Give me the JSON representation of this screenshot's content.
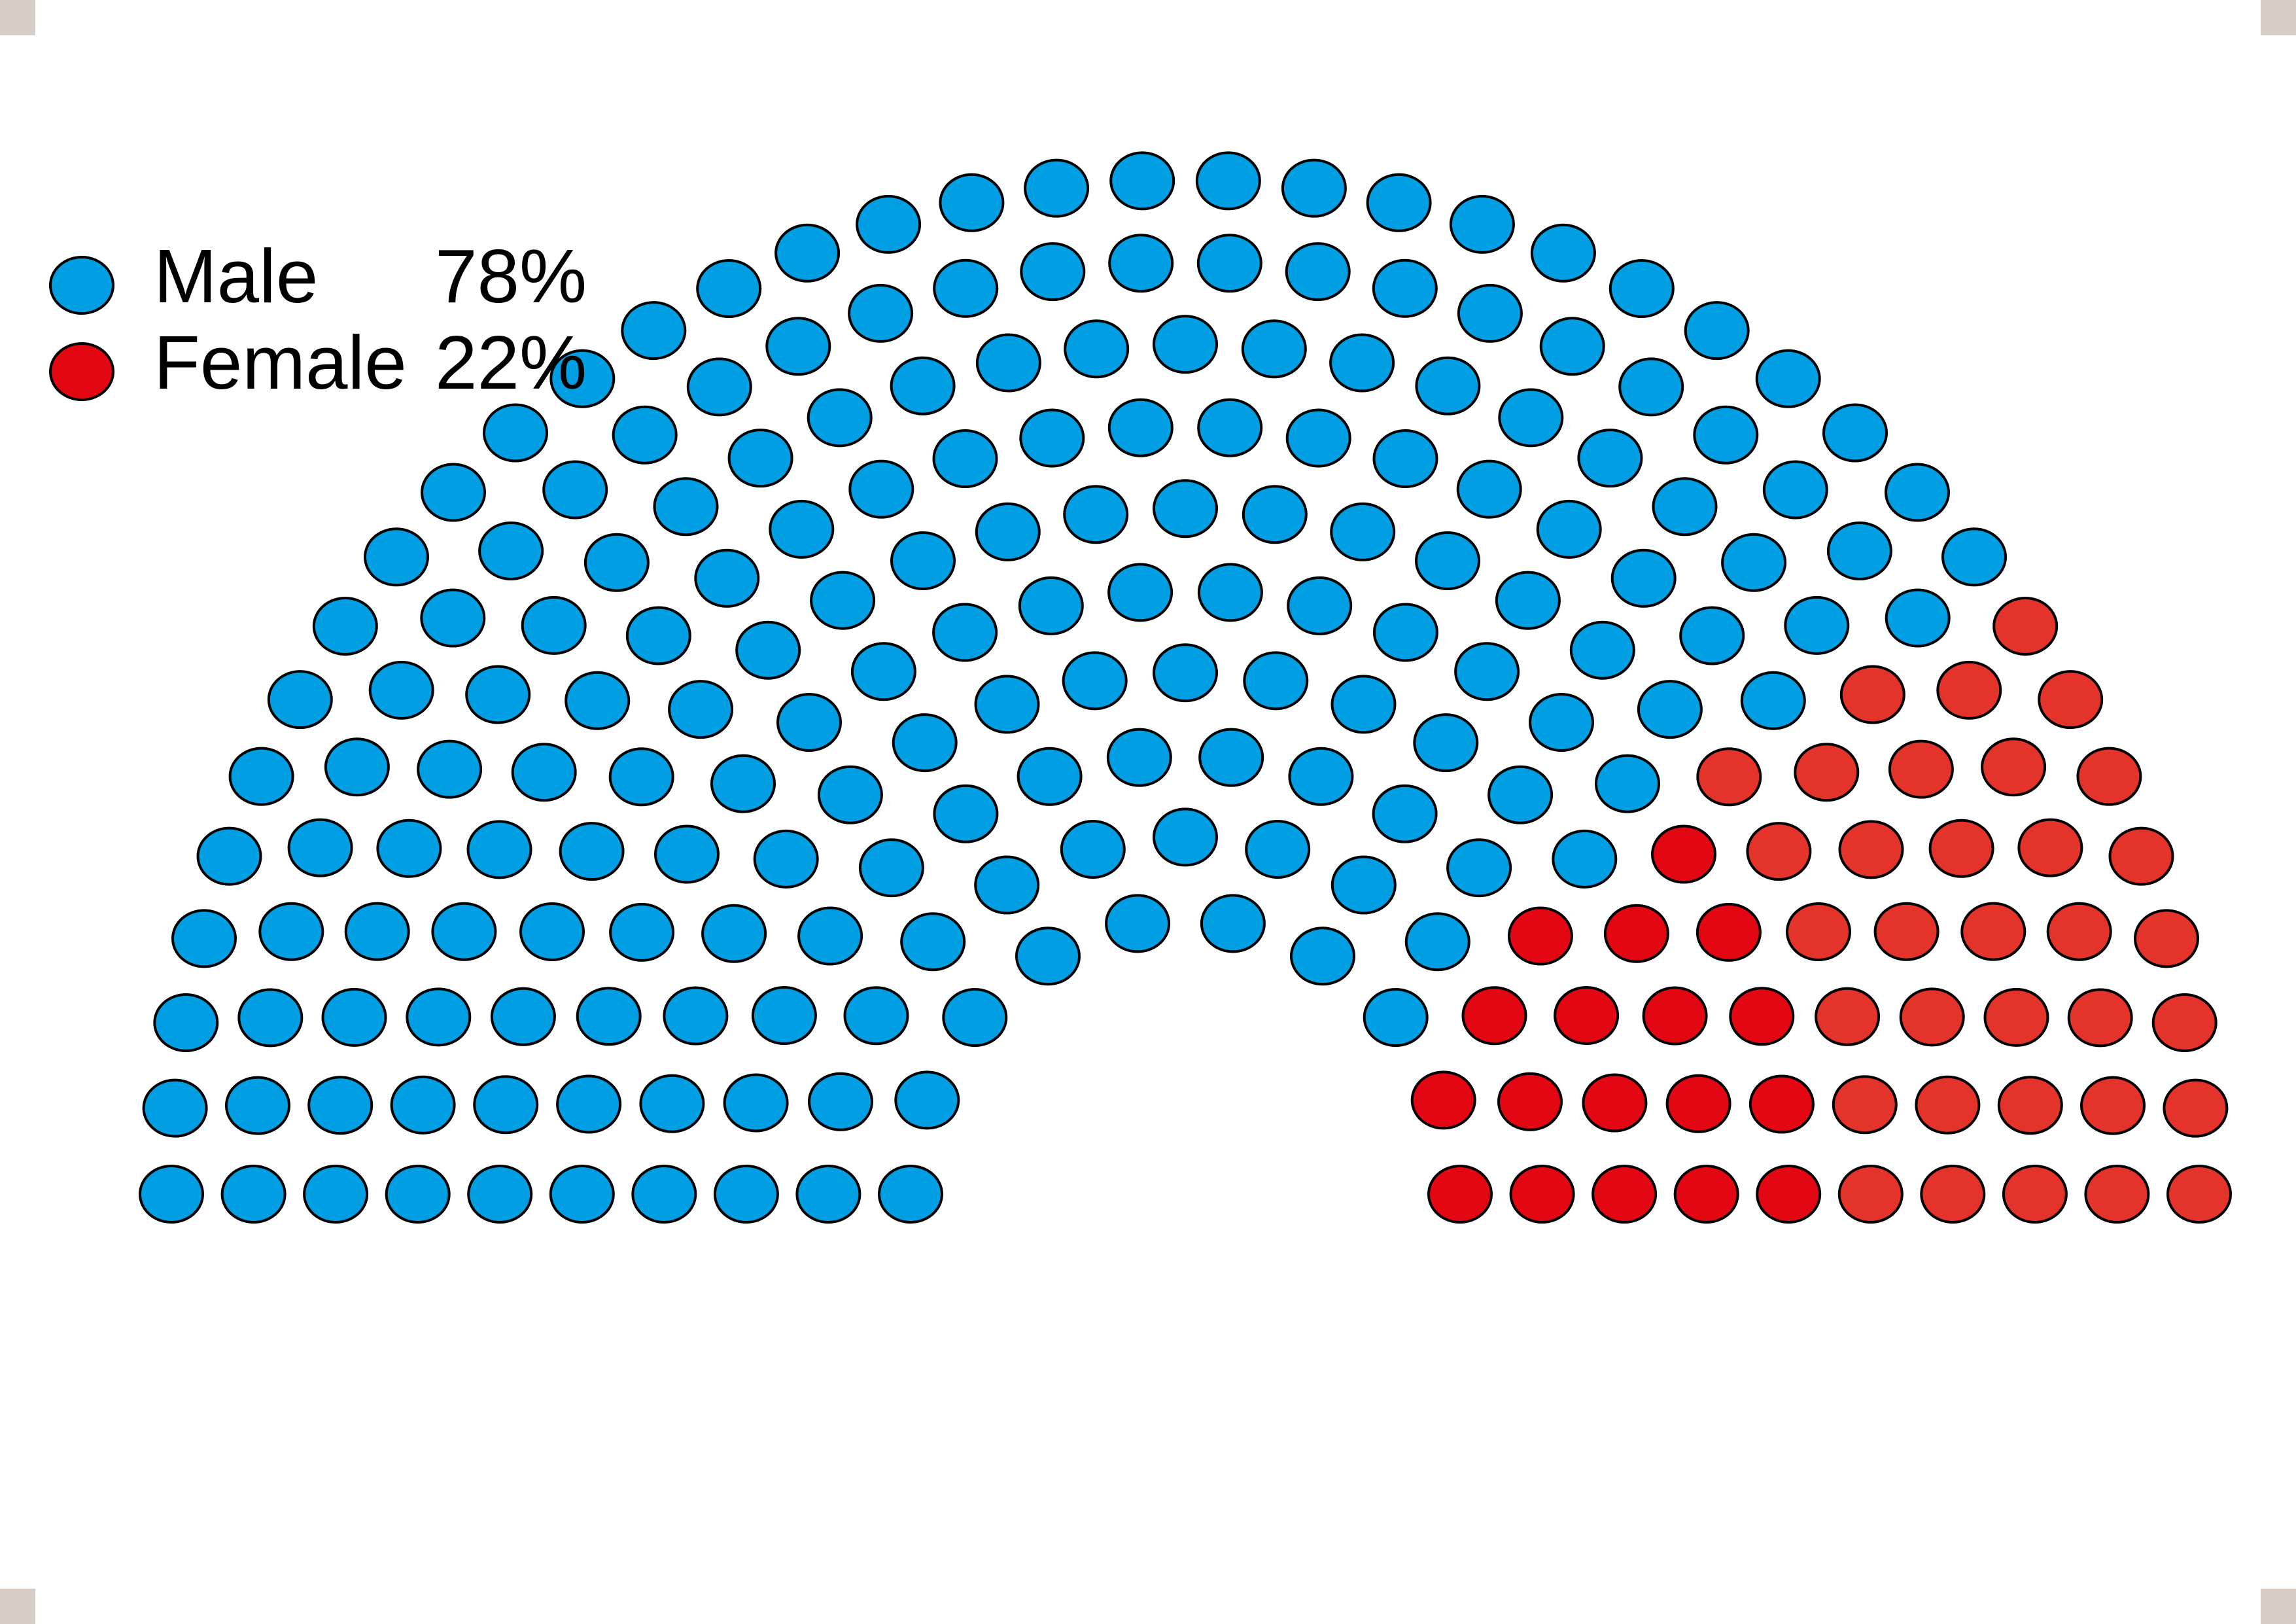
{
  "chart_data": {
    "type": "parliament",
    "categories": [
      "Male",
      "Female"
    ],
    "values": [
      78,
      22
    ],
    "unit": "%",
    "value_labels": [
      "78%",
      "22%"
    ],
    "seat_counts": [
      184,
      52
    ],
    "total_seats": 236,
    "rows": 10,
    "legend": {
      "placement": "top-left",
      "entries": [
        {
          "label": "Male",
          "value_text": "78%"
        },
        {
          "label": "Female",
          "value_text": "22%"
        }
      ]
    },
    "colors": {
      "male": "#009fe3",
      "female_inner": "#e30613",
      "female_outer": "#e4332a",
      "outline": "#000000"
    }
  }
}
